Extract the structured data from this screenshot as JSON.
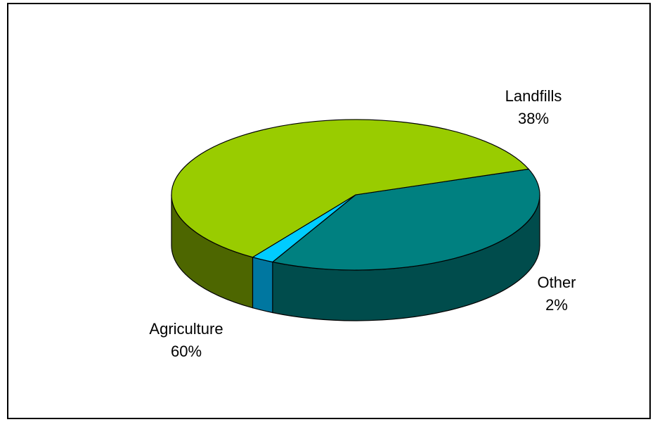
{
  "chart_data": {
    "type": "pie",
    "style": "3d-exploded-oval",
    "slices": [
      {
        "label": "Landfills",
        "value": 38,
        "value_label": "38%",
        "color": "#008080",
        "side_color": "#004C4C"
      },
      {
        "label": "Other",
        "value": 2,
        "value_label": "2%",
        "color": "#00CCFF",
        "side_color": "#0077A0"
      },
      {
        "label": "Agriculture",
        "value": 60,
        "value_label": "60%",
        "color": "#99CC00",
        "side_color": "#4D6600"
      }
    ],
    "legend": "none",
    "data_labels": "category-and-percent"
  }
}
